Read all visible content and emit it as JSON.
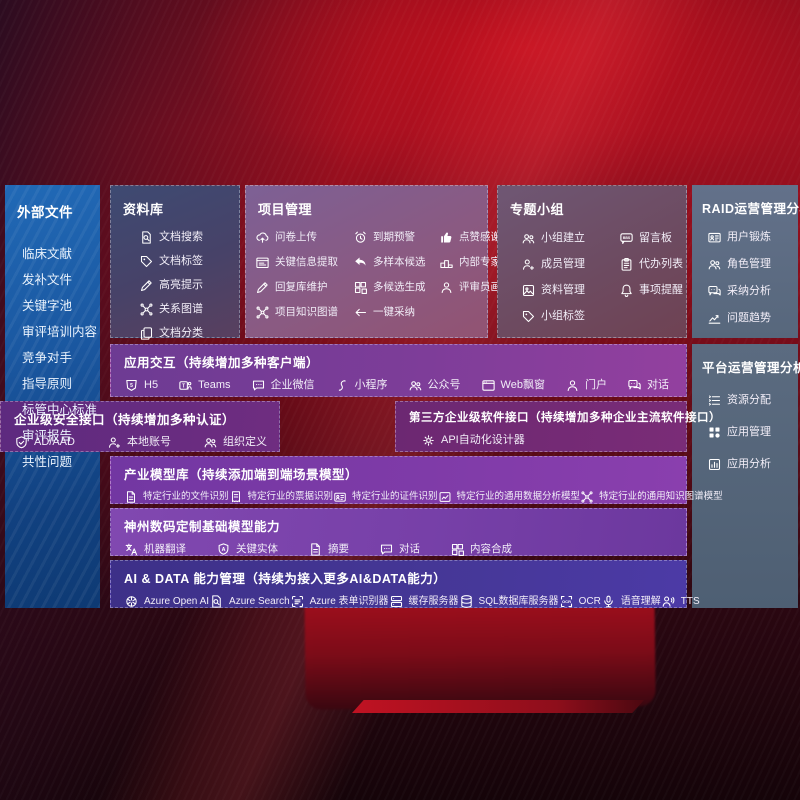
{
  "colors": {
    "background_red": "#a01020",
    "sidebar_blue": "#1a57a0",
    "row_purple": "#7e3d99",
    "row_indigo": "#453796",
    "panel_slate": "#57677c"
  },
  "sidebar": {
    "title": "外部文件",
    "items": [
      {
        "label": "临床文献"
      },
      {
        "label": "发补文件"
      },
      {
        "label": "关键字池"
      },
      {
        "label": "审评培训内容"
      },
      {
        "label": "竞争对手"
      },
      {
        "label": "指导原则"
      },
      {
        "label": "标管中心标准"
      },
      {
        "label": "审评报告"
      },
      {
        "label": "共性问题"
      }
    ]
  },
  "panels": {
    "library": {
      "title": "资料库",
      "items": [
        {
          "label": "文档搜索",
          "icon": "doc-search"
        },
        {
          "label": "文档标签",
          "icon": "tag"
        },
        {
          "label": "高亮提示",
          "icon": "highlight-pen"
        },
        {
          "label": "关系图谱",
          "icon": "relation-graph"
        },
        {
          "label": "文档分类",
          "icon": "doc-copy"
        }
      ]
    },
    "project": {
      "title": "项目管理",
      "items": [
        {
          "label": "问卷上传",
          "icon": "cloud-upload"
        },
        {
          "label": "到期预警",
          "icon": "alarm"
        },
        {
          "label": "点赞感谢",
          "icon": "thumb-up"
        },
        {
          "label": "关键信息提取",
          "icon": "info-extract"
        },
        {
          "label": "多样本候选",
          "icon": "reply"
        },
        {
          "label": "内部专家排名",
          "icon": "rank"
        },
        {
          "label": "回复库维护",
          "icon": "pen"
        },
        {
          "label": "多候选生成",
          "icon": "puzzle"
        },
        {
          "label": "评审员画像",
          "icon": "person"
        },
        {
          "label": "项目知识图谱",
          "icon": "relation-graph"
        },
        {
          "label": "一键采纳",
          "icon": "adopt-arrow"
        }
      ]
    },
    "groups": {
      "title": "专题小组",
      "items": [
        {
          "label": "小组建立",
          "icon": "team"
        },
        {
          "label": "留言板",
          "icon": "bbs"
        },
        {
          "label": "成员管理",
          "icon": "member-add"
        },
        {
          "label": "代办列表",
          "icon": "todo-list"
        },
        {
          "label": "资料管理",
          "icon": "album"
        },
        {
          "label": "事项提醒",
          "icon": "bell"
        },
        {
          "label": "小组标签",
          "icon": "tag"
        }
      ]
    },
    "raid": {
      "title": "RAID运营管理分析",
      "items": [
        {
          "label": "用户锻炼",
          "icon": "id-card"
        },
        {
          "label": "角色管理",
          "icon": "roles"
        },
        {
          "label": "采纳分析",
          "icon": "qa-chat"
        },
        {
          "label": "问题趋势",
          "icon": "trend"
        }
      ]
    },
    "platform": {
      "title": "平台运营管理分析",
      "items": [
        {
          "label": "资源分配",
          "icon": "resource-list"
        },
        {
          "label": "应用管理",
          "icon": "app-grid"
        },
        {
          "label": "应用分析",
          "icon": "app-chart"
        }
      ]
    }
  },
  "rows": {
    "interaction": {
      "title": "应用交互（持续增加多种客户端）",
      "items": [
        {
          "label": "H5",
          "icon": "h5"
        },
        {
          "label": "Teams",
          "icon": "teams"
        },
        {
          "label": "企业微信",
          "icon": "wechat-work"
        },
        {
          "label": "小程序",
          "icon": "mini-program"
        },
        {
          "label": "公众号",
          "icon": "official-account"
        },
        {
          "label": "Web飘窗",
          "icon": "web-window"
        },
        {
          "label": "门户",
          "icon": "portal"
        },
        {
          "label": "对话",
          "icon": "dialog"
        }
      ]
    },
    "security": {
      "title": "企业级安全接口（持续增加多种认证）",
      "items": [
        {
          "label": "AD/AAD",
          "icon": "shield"
        },
        {
          "label": "本地账号",
          "icon": "local-account"
        },
        {
          "label": "组织定义",
          "icon": "org-users"
        }
      ]
    },
    "thirdparty": {
      "title": "第三方企业级软件接口（持续增加多种企业主流软件接口）",
      "items": [
        {
          "label": "API自动化设计器",
          "icon": "api-gear"
        }
      ]
    },
    "models": {
      "title": "产业模型库（持续添加端到端场景模型）",
      "items": [
        {
          "label": "特定行业的文件识别",
          "icon": "doc"
        },
        {
          "label": "特定行业的票据识别",
          "icon": "receipt"
        },
        {
          "label": "特定行业的证件识别",
          "icon": "id-card"
        },
        {
          "label": "特定行业的通用数据分析模型",
          "icon": "data-analysis"
        },
        {
          "label": "特定行业的通用知识图谱模型",
          "icon": "relation-graph"
        }
      ]
    },
    "base": {
      "title": "神州数码定制基础模型能力",
      "items": [
        {
          "label": "机器翻译",
          "icon": "translate"
        },
        {
          "label": "关键实体",
          "icon": "entity"
        },
        {
          "label": "摘要",
          "icon": "summary"
        },
        {
          "label": "对话",
          "icon": "chat"
        },
        {
          "label": "内容合成",
          "icon": "compose"
        }
      ]
    },
    "aidata": {
      "title": "AI & DATA 能力管理（持续为接入更多AI&DATA能力）",
      "items": [
        {
          "label": "Azure Open AI",
          "icon": "openai"
        },
        {
          "label": "Azure Search",
          "icon": "azure-search"
        },
        {
          "label": "Azure 表单识别器",
          "icon": "form"
        },
        {
          "label": "缓存服务器",
          "icon": "cache-server"
        },
        {
          "label": "SQL数据库服务器",
          "icon": "sql-db"
        },
        {
          "label": "OCR",
          "icon": "ocr"
        },
        {
          "label": "语音理解",
          "icon": "speech"
        },
        {
          "label": "TTS",
          "icon": "tts"
        }
      ]
    }
  }
}
